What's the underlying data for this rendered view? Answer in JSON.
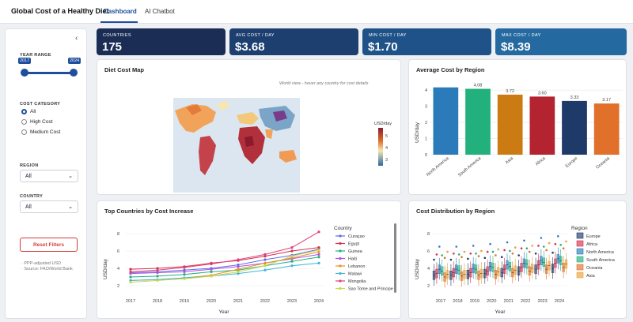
{
  "app": {
    "title": "Global Cost of a Healthy Diet"
  },
  "tabs": [
    {
      "label": "Dashboard",
      "active": true
    },
    {
      "label": "AI Chatbot",
      "active": false
    }
  ],
  "sidebar": {
    "year_range_label": "YEAR RANGE",
    "year_min": "2017",
    "year_max": "2024",
    "category_label": "COST CATEGORY",
    "categories": [
      {
        "label": "All",
        "selected": true
      },
      {
        "label": "High Cost",
        "selected": false
      },
      {
        "label": "Medium Cost",
        "selected": false
      }
    ],
    "region_label": "REGION",
    "region_value": "All",
    "country_label": "COUNTRY",
    "country_value": "All",
    "reset_label": "Reset Filters",
    "notes": [
      "· PPP-adjusted USD",
      "· Source: FAO/World Bank"
    ]
  },
  "kpis": [
    {
      "label": "COUNTRIES",
      "value": "175",
      "color": "#1b2d55"
    },
    {
      "label": "AVG COST / DAY",
      "value": "$3.68",
      "color": "#1d3f70"
    },
    {
      "label": "MIN COST / DAY",
      "value": "$1.70",
      "color": "#1f5288"
    },
    {
      "label": "MAX COST / DAY",
      "value": "$8.39",
      "color": "#246aa0"
    }
  ],
  "map_card": {
    "title": "Diet Cost Map",
    "note": "World view - hover any country for cost details",
    "colorbar_title": "USD/day",
    "colorbar_ticks": [
      "5",
      "4",
      "3"
    ]
  },
  "avg_card": {
    "title": "Average Cost by Region",
    "ylabel": "USD/day",
    "ticks": [
      "0",
      "1",
      "2",
      "3",
      "4"
    ]
  },
  "top_card": {
    "title": "Top Countries by Cost Increase",
    "xlabel": "Year",
    "ylabel": "USD/day",
    "legend_title": "Country",
    "yticks": [
      "2",
      "4",
      "6",
      "8"
    ]
  },
  "dist_card": {
    "title": "Cost Distribution by Region",
    "xlabel": "Year",
    "ylabel": "USD/day",
    "legend_title": "Region",
    "yticks": [
      "2",
      "4",
      "6",
      "8"
    ]
  },
  "chart_data": [
    {
      "type": "bar",
      "title": "Average Cost by Region",
      "categories": [
        "North America",
        "South America",
        "Asia",
        "Africa",
        "Europe",
        "Oceania"
      ],
      "values": [
        4.17,
        4.08,
        3.72,
        3.6,
        3.33,
        3.17
      ],
      "data_labels": [
        "",
        "4.08",
        "3.72",
        "3.60",
        "3.33",
        "3.17"
      ],
      "colors": [
        "#2b7bba",
        "#22b07d",
        "#cc7a12",
        "#b32430",
        "#1e3a68",
        "#e0702a"
      ],
      "ylabel": "USD/day",
      "ylim": [
        0,
        4.4
      ],
      "grid": true
    },
    {
      "type": "line",
      "title": "Top Countries by Cost Increase",
      "x": [
        2017,
        2018,
        2019,
        2020,
        2021,
        2022,
        2023,
        2024
      ],
      "xlabel": "Year",
      "ylabel": "USD/day",
      "ylim": [
        1,
        9
      ],
      "legend": "right",
      "series": [
        {
          "name": "Curaçao",
          "color": "#5b6ee1",
          "values": [
            3.5,
            3.6,
            3.8,
            4.0,
            4.4,
            5.0,
            5.5,
            6.2
          ]
        },
        {
          "name": "Egypt",
          "color": "#d6304a",
          "values": [
            3.9,
            4.0,
            4.2,
            4.6,
            4.9,
            5.4,
            6.0,
            6.4
          ]
        },
        {
          "name": "Guinea",
          "color": "#22b07d",
          "values": [
            3.0,
            3.1,
            3.3,
            3.6,
            3.8,
            4.3,
            4.8,
            5.3
          ]
        },
        {
          "name": "Haiti",
          "color": "#b34fe0",
          "values": [
            3.4,
            3.5,
            3.6,
            3.9,
            4.2,
            4.6,
            5.1,
            5.6
          ]
        },
        {
          "name": "Lebanon",
          "color": "#e8902a",
          "values": [
            2.6,
            2.7,
            2.9,
            3.2,
            3.9,
            4.6,
            5.2,
            5.9
          ]
        },
        {
          "name": "Malawi",
          "color": "#3fb6d6",
          "values": [
            2.6,
            2.7,
            2.9,
            3.1,
            3.4,
            3.8,
            4.3,
            4.6
          ]
        },
        {
          "name": "Mongolia",
          "color": "#e0407a",
          "values": [
            3.6,
            3.8,
            4.1,
            4.5,
            5.0,
            5.6,
            6.4,
            8.2
          ]
        },
        {
          "name": "Sao Tome and Principe",
          "color": "#c9d94a",
          "values": [
            2.4,
            2.6,
            2.8,
            3.1,
            3.6,
            4.3,
            5.4,
            6.1
          ]
        }
      ]
    },
    {
      "type": "box",
      "title": "Cost Distribution by Region",
      "x": [
        2017,
        2018,
        2019,
        2020,
        2021,
        2022,
        2023,
        2024
      ],
      "xlabel": "Year",
      "ylabel": "USD/day",
      "ylim": [
        1,
        9
      ],
      "legend": "right",
      "series": [
        {
          "name": "Europe",
          "color": "#1e3a68",
          "medians": [
            3.2,
            3.2,
            3.3,
            3.4,
            3.5,
            3.7,
            3.9,
            4.0
          ]
        },
        {
          "name": "Africa",
          "color": "#d6304a",
          "medians": [
            3.4,
            3.5,
            3.5,
            3.7,
            3.9,
            4.1,
            4.4,
            4.6
          ]
        },
        {
          "name": "North America",
          "color": "#2b7bba",
          "medians": [
            3.9,
            3.9,
            4.0,
            4.2,
            4.4,
            4.6,
            4.9,
            5.1
          ]
        },
        {
          "name": "South America",
          "color": "#22b07d",
          "medians": [
            3.7,
            3.8,
            3.9,
            4.1,
            4.2,
            4.5,
            4.7,
            4.9
          ]
        },
        {
          "name": "Oceania",
          "color": "#e0702a",
          "medians": [
            3.0,
            3.1,
            3.2,
            3.3,
            3.5,
            3.7,
            3.9,
            4.1
          ]
        },
        {
          "name": "Asia",
          "color": "#e8a23a",
          "medians": [
            3.3,
            3.3,
            3.4,
            3.6,
            3.8,
            4.0,
            4.3,
            4.5
          ]
        }
      ]
    }
  ]
}
